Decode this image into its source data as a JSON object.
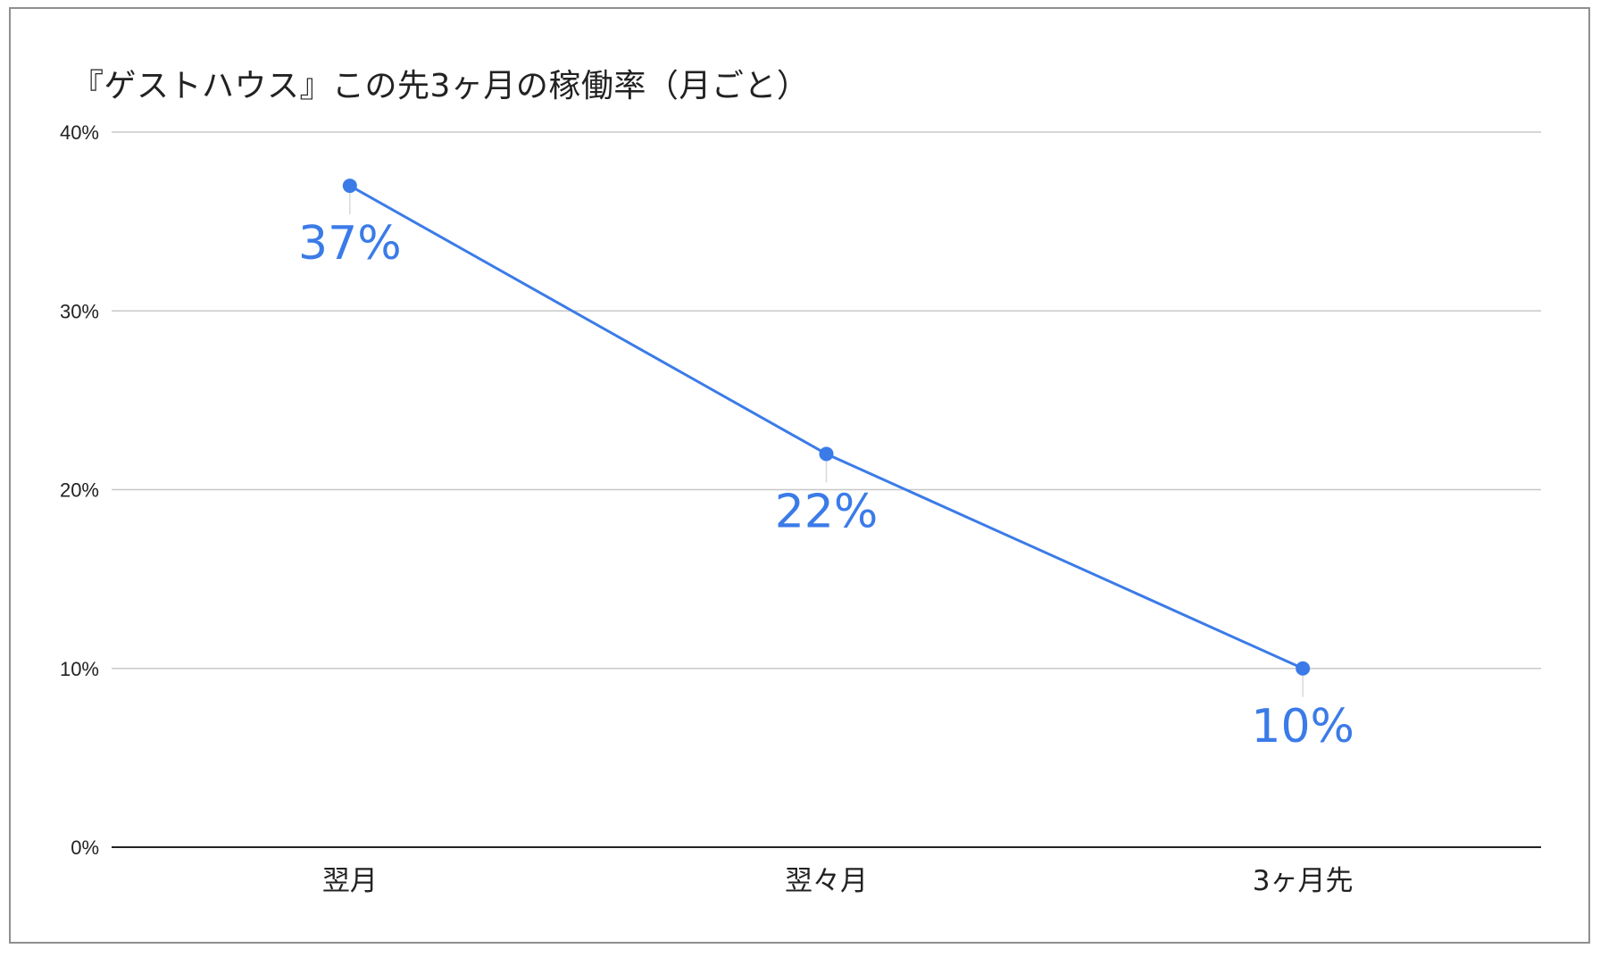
{
  "chart_data": {
    "type": "line",
    "title": "『ゲストハウス』この先3ヶ月の稼働率（月ごと）",
    "categories": [
      "翌月",
      "翌々月",
      "3ヶ月先"
    ],
    "series": [
      {
        "values": [
          37,
          22,
          10
        ],
        "color": "#3b7be8"
      }
    ],
    "data_labels": [
      "37%",
      "22%",
      "10%"
    ],
    "y_ticks": [
      0,
      10,
      20,
      30,
      40
    ],
    "y_tick_labels": [
      "0%",
      "10%",
      "20%",
      "30%",
      "40%"
    ],
    "ylim": [
      0,
      40
    ],
    "xlabel": "",
    "ylabel": "",
    "grid": true,
    "legend": "none",
    "colors": {
      "series": "#3b7be8",
      "grid": "#c8c8c8",
      "axis": "#222222",
      "leader": "#d9d9d9"
    }
  }
}
